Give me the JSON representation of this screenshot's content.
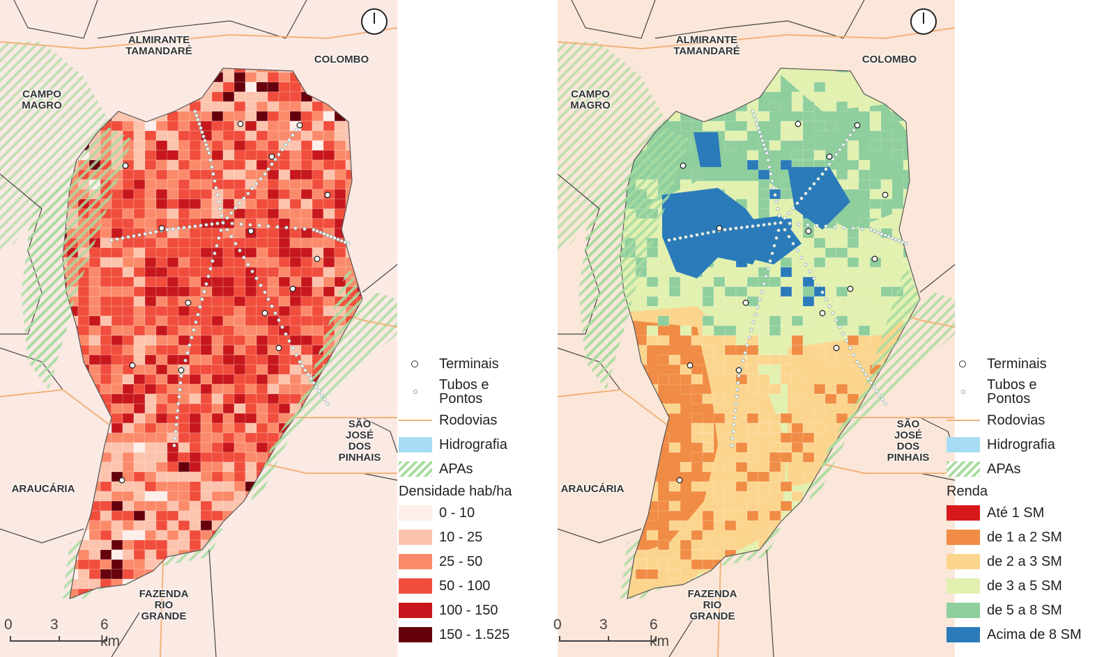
{
  "maps": [
    {
      "id": "left",
      "cities": [
        {
          "name": "ALMIRANTE\nTAMANDARÉ"
        },
        {
          "name": "COLOMBO"
        },
        {
          "name": "CAMPO\nMAGRO"
        },
        {
          "name": "SÃO\nJOSÉ\nDOS\nPINHAIS"
        },
        {
          "name": "ARAUCÁRIA"
        },
        {
          "name": "FAZENDA\nRIO\nGRANDE"
        }
      ],
      "scale": {
        "labels": [
          "0",
          "3",
          "6 km"
        ]
      },
      "legend": {
        "items": [
          {
            "label": "Terminais",
            "symbol": "terminal-icon"
          },
          {
            "label": "Tubos e\nPontos",
            "symbol": "stop-icon"
          },
          {
            "label": "Rodovias",
            "symbol": "highway-line"
          },
          {
            "label": "Hidrografia",
            "color": "#a6dcf3"
          },
          {
            "label": "APAs",
            "symbol": "hatch"
          }
        ],
        "title": "Densidade hab/ha",
        "classes": [
          {
            "label": "0 - 10",
            "color": "#fdeeea"
          },
          {
            "label": "10 - 25",
            "color": "#fcc3ad"
          },
          {
            "label": "25 - 50",
            "color": "#fb8a6a"
          },
          {
            "label": "50 - 100",
            "color": "#f14d3c"
          },
          {
            "label": "100 - 150",
            "color": "#c7171c"
          },
          {
            "label": "150 - 1.525",
            "color": "#67000d"
          }
        ]
      }
    },
    {
      "id": "right",
      "cities": [
        {
          "name": "ALMIRANTE\nTAMANDARÉ"
        },
        {
          "name": "COLOMBO"
        },
        {
          "name": "CAMPO\nMAGRO"
        },
        {
          "name": "SÃO\nJOSÉ\nDOS\nPINHAIS"
        },
        {
          "name": "ARAUCÁRIA"
        },
        {
          "name": "FAZENDA\nRIO\nGRANDE"
        }
      ],
      "scale": {
        "labels": [
          "0",
          "3",
          "6 km"
        ]
      },
      "legend": {
        "items": [
          {
            "label": "Terminais",
            "symbol": "terminal-icon"
          },
          {
            "label": "Tubos e\nPontos",
            "symbol": "stop-icon"
          },
          {
            "label": "Rodovias",
            "symbol": "highway-line"
          },
          {
            "label": "Hidrografia",
            "color": "#a6dcf3"
          },
          {
            "label": "APAs",
            "symbol": "hatch"
          }
        ],
        "title": "Renda",
        "classes": [
          {
            "label": "Até 1 SM",
            "color": "#d7191c"
          },
          {
            "label": "de 1 a 2 SM",
            "color": "#f08c45"
          },
          {
            "label": "de 2 a 3 SM",
            "color": "#fbd58e"
          },
          {
            "label": "de 3 a 5 SM",
            "color": "#e2f0b0"
          },
          {
            "label": "de 5 a 8 SM",
            "color": "#8fce9d"
          },
          {
            "label": "Acima de 8 SM",
            "color": "#2b7bba"
          }
        ]
      }
    }
  ],
  "colors": {
    "surround_left": "#fbe9e4",
    "surround_right": "#fbe7d9",
    "apa_hatch": "#a9dca0",
    "highway": "#f2b27a",
    "hydro": "#a6dcf3"
  }
}
